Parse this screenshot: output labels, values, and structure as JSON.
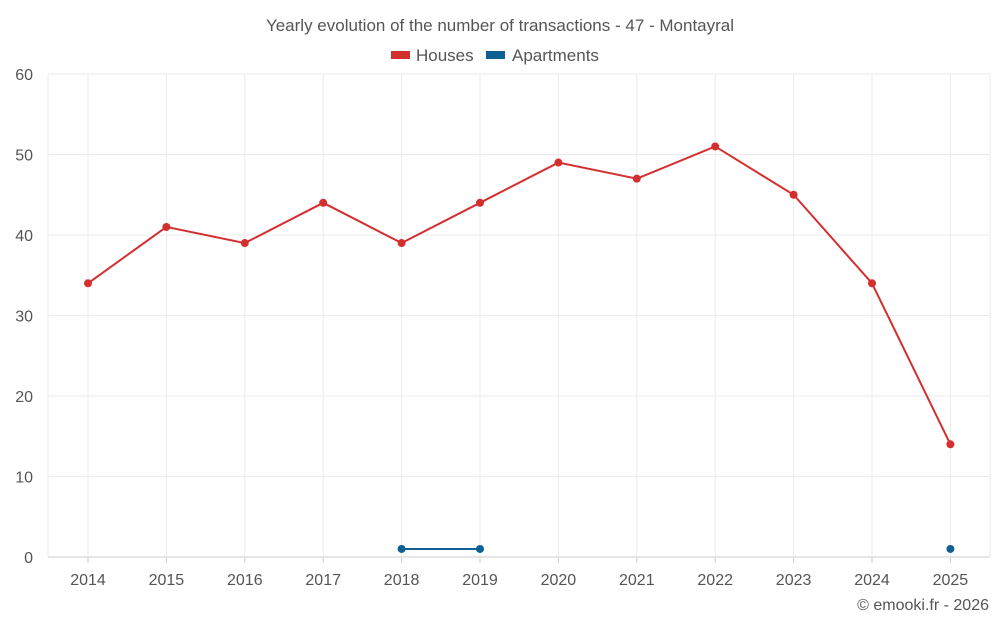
{
  "chart_data": {
    "type": "line",
    "title": "Yearly evolution of the number of transactions - 47 - Montayral",
    "x": [
      "2014",
      "2015",
      "2016",
      "2017",
      "2018",
      "2019",
      "2020",
      "2021",
      "2022",
      "2023",
      "2024",
      "2025"
    ],
    "ylim": [
      0,
      60
    ],
    "yticks": [
      0,
      10,
      20,
      30,
      40,
      50,
      60
    ],
    "legend_position": "top-center",
    "grid": true,
    "series": [
      {
        "name": "Houses",
        "color": "#d32f2f",
        "values": [
          34,
          41,
          39,
          44,
          39,
          44,
          49,
          47,
          51,
          45,
          34,
          14
        ]
      },
      {
        "name": "Apartments",
        "color": "#0d5f94",
        "values": [
          null,
          null,
          null,
          null,
          1,
          1,
          null,
          null,
          null,
          null,
          null,
          1
        ]
      }
    ],
    "credit": "© emooki.fr - 2026"
  }
}
